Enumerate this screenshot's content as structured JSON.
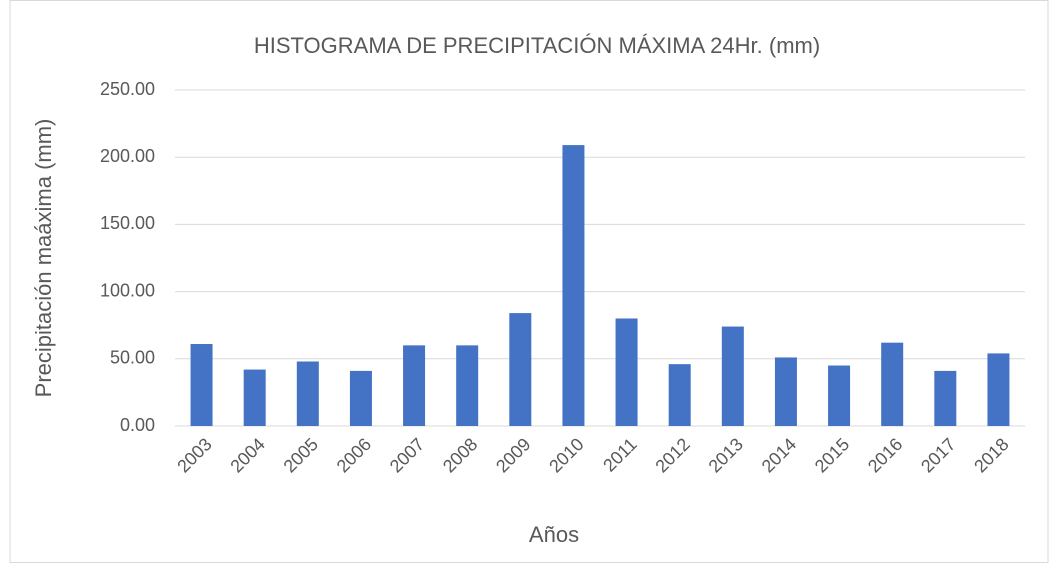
{
  "chart_data": {
    "type": "bar",
    "title": "HISTOGRAMA DE PRECIPITACIÓN MÁXIMA 24Hr. (mm)",
    "x_label": "Años",
    "y_label": "Precipitación maáxima (mm)",
    "categories": [
      "2003",
      "2004",
      "2005",
      "2006",
      "2007",
      "2008",
      "2009",
      "2010",
      "2011",
      "2012",
      "2013",
      "2014",
      "2015",
      "2016",
      "2017",
      "2018"
    ],
    "values": [
      61,
      42,
      48,
      41,
      60,
      60,
      84,
      209,
      80,
      46,
      74,
      51,
      45,
      62,
      41,
      54
    ],
    "color": "#4472c4",
    "ylim": [
      0,
      250
    ],
    "yticks": [
      {
        "value": 0,
        "label": "0.00"
      },
      {
        "value": 50,
        "label": "50.00"
      },
      {
        "value": 100,
        "label": "100.00"
      },
      {
        "value": 150,
        "label": "150.00"
      },
      {
        "value": 200,
        "label": "200.00"
      },
      {
        "value": 250,
        "label": "250.00"
      }
    ],
    "grid": true
  }
}
